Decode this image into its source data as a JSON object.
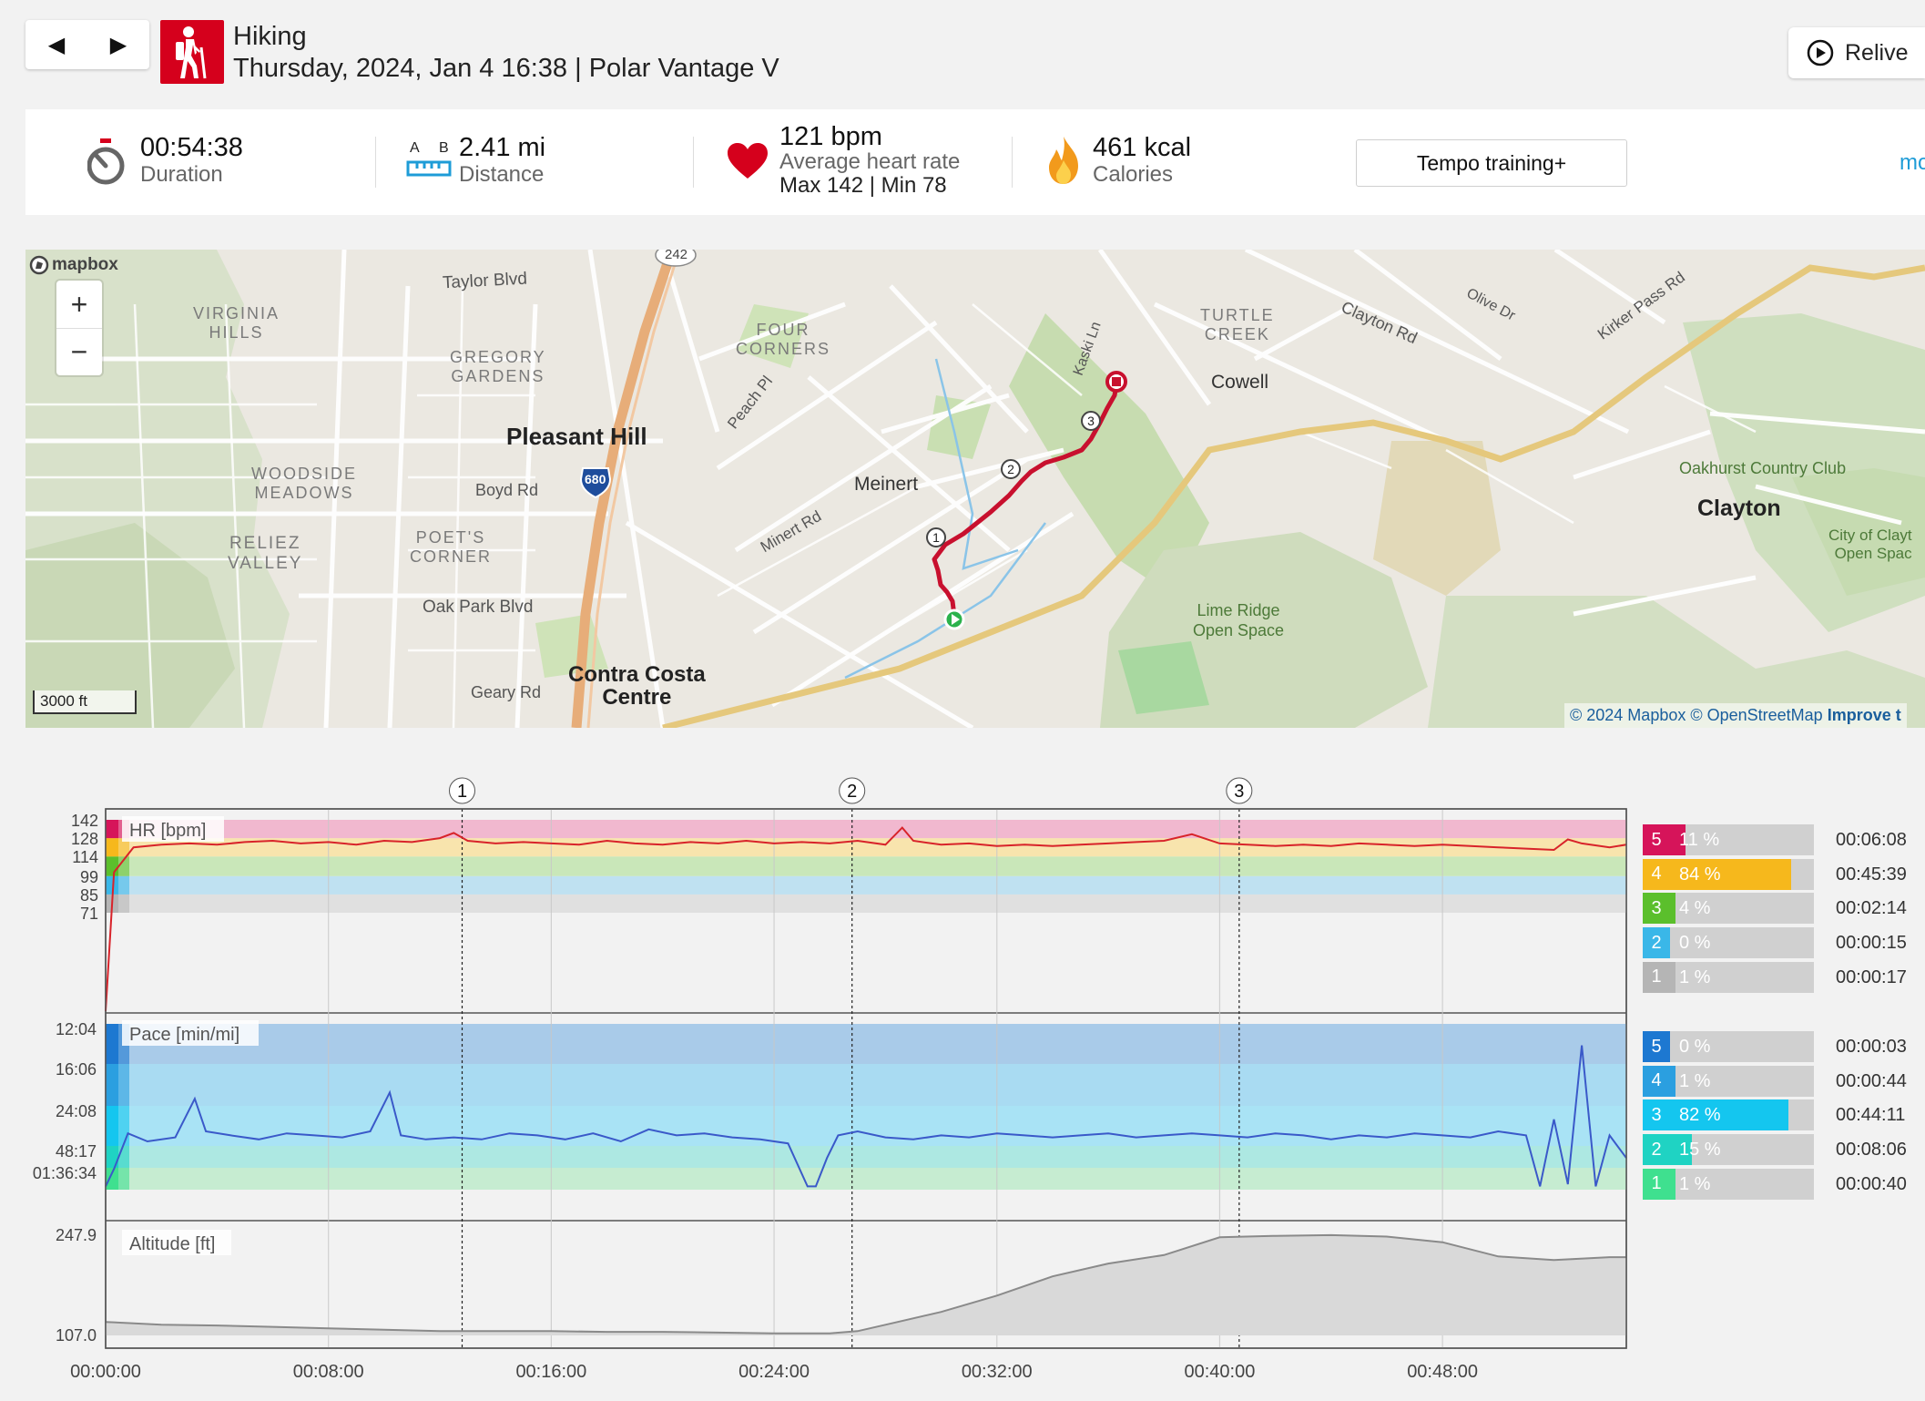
{
  "header": {
    "prev_label": "◀",
    "next_label": "▶",
    "sport": "Hiking",
    "subtitle": "Thursday, 2024, Jan 4 16:38 | Polar Vantage V",
    "relive_label": "Relive"
  },
  "summary": {
    "duration_value": "00:54:38",
    "duration_label": "Duration",
    "distance_value": "2.41 mi",
    "distance_label": "Distance",
    "distance_icon_a": "A",
    "distance_icon_b": "B",
    "hr_value": "121 bpm",
    "hr_label": "Average heart rate",
    "hr_maxmin": "Max 142  |  Min 78",
    "cal_value": "461 kcal",
    "cal_label": "Calories",
    "tempo_label": "Tempo training+",
    "more_label": "mo"
  },
  "map": {
    "labels": {
      "taylor": "Taylor Blvd",
      "virginia": "VIRGINIA\nHILLS",
      "gregory": "GREGORY\nGARDENS",
      "four": "FOUR\nCORNERS",
      "peach": "Peach Pl",
      "pleasant": "Pleasant Hill",
      "woodside": "WOODSIDE\nMEADOWS",
      "boyd": "Boyd Rd",
      "i680": "680",
      "meinert": "Meinert",
      "minert": "Minert Rd",
      "relize": "RELIEZ\nVALLEY",
      "poets": "POET'S\nCORNER",
      "oak": "Oak Park Blvd",
      "contra": "Contra Costa\nCentre",
      "geary": "Geary Rd",
      "kaski": "Kaski Ln",
      "turtle": "TURTLE\nCREEK",
      "cowell": "Cowell",
      "clayton_rd": "Clayton Rd",
      "olive": "Olive Dr",
      "kirker": "Kirker Pass Rd",
      "oakhurst": "Oakhurst Country Club",
      "clayton": "Clayton",
      "city_clayton": "City of Clayt\nOpen Spac",
      "lime": "Lime Ridge\nOpen Space",
      "hwy242": "242"
    },
    "lap_markers": [
      "1",
      "2",
      "3"
    ],
    "zoom_in": "+",
    "zoom_out": "−",
    "logo": "mapbox",
    "scale": "3000 ft",
    "attribution": "© 2024 Mapbox © OpenStreetMap",
    "improve": "Improve t"
  },
  "chart_data": {
    "type": "line",
    "x_ticks": [
      "00:00:00",
      "00:08:00",
      "00:16:00",
      "00:24:00",
      "00:32:00",
      "00:40:00",
      "00:48:00"
    ],
    "x_range_min": [
      0,
      54.6
    ],
    "laps": [
      {
        "label": "1",
        "min": 12.8
      },
      {
        "label": "2",
        "min": 26.8
      },
      {
        "label": "3",
        "min": 40.7
      }
    ],
    "hr": {
      "title": "HR [bpm]",
      "y_ticks": [
        142,
        128,
        114,
        99,
        85,
        71
      ],
      "zone_bounds": [
        71,
        85,
        99,
        114,
        128,
        142
      ],
      "minutes": [
        0,
        0.3,
        1,
        2,
        3,
        4,
        5,
        6,
        7,
        8,
        9,
        10,
        11,
        12,
        12.5,
        13,
        14,
        15,
        16,
        17,
        18,
        19,
        20,
        21,
        22,
        23,
        24,
        25,
        26,
        27,
        28,
        28.6,
        29,
        30,
        31,
        32,
        33,
        34,
        35,
        36,
        37,
        38,
        39,
        40,
        41,
        42,
        43,
        44,
        45,
        46,
        47,
        48,
        49,
        50,
        51,
        52,
        52.5,
        53,
        54,
        54.6
      ],
      "values": [
        0,
        102,
        121,
        123,
        124,
        123,
        125,
        126,
        124,
        125,
        123,
        126,
        125,
        128,
        132,
        126,
        124,
        125,
        124,
        123,
        126,
        124,
        123,
        125,
        124,
        126,
        124,
        125,
        124,
        126,
        123,
        136,
        126,
        123,
        124,
        122,
        123,
        122,
        123,
        124,
        125,
        126,
        131,
        124,
        123,
        122,
        123,
        122,
        124,
        123,
        122,
        123,
        122,
        121,
        120,
        119,
        127,
        124,
        121,
        123
      ],
      "zones": [
        {
          "zone": "5",
          "percent": "11 %",
          "fraction": 0.11,
          "time": "00:06:08",
          "color": "#d6145a"
        },
        {
          "zone": "4",
          "percent": "84 %",
          "fraction": 0.84,
          "time": "00:45:39",
          "color": "#f6b81c"
        },
        {
          "zone": "3",
          "percent": "4 %",
          "fraction": 0.04,
          "time": "00:02:14",
          "color": "#5bbf2c"
        },
        {
          "zone": "2",
          "percent": "0 %",
          "fraction": 0.0,
          "time": "00:00:15",
          "color": "#3ab7e8"
        },
        {
          "zone": "1",
          "percent": "1 %",
          "fraction": 0.01,
          "time": "00:00:17",
          "color": "#b5b5b5"
        }
      ]
    },
    "pace": {
      "title": "Pace [min/mi]",
      "y_ticks": [
        "12:04",
        "16:06",
        "24:08",
        "48:17",
        "01:36:34"
      ],
      "minutes": [
        0,
        0.3,
        0.8,
        1.5,
        2.5,
        3.2,
        3.6,
        4.5,
        5.5,
        6.5,
        7.5,
        8.5,
        9.5,
        10.2,
        10.6,
        11.5,
        12.5,
        13.5,
        14.5,
        15.5,
        16.5,
        17.5,
        18.5,
        19.5,
        20.5,
        21.5,
        22.5,
        23.5,
        24.5,
        25.2,
        25.5,
        25.9,
        26.3,
        27,
        28,
        29,
        30,
        31,
        32,
        33,
        34,
        35,
        36,
        37,
        38,
        39,
        40,
        41,
        42,
        43,
        44,
        45,
        46,
        47,
        48,
        49,
        50,
        51,
        51.5,
        52,
        52.5,
        53,
        53.5,
        54,
        54.6
      ],
      "row": [
        5.6,
        3.8,
        2.55,
        2.75,
        2.65,
        1.7,
        2.5,
        2.6,
        2.7,
        2.55,
        2.6,
        2.65,
        2.5,
        1.55,
        2.6,
        2.7,
        2.65,
        2.7,
        2.55,
        2.6,
        2.7,
        2.55,
        2.75,
        2.45,
        2.6,
        2.55,
        2.65,
        2.7,
        2.8,
        5.6,
        5.6,
        3.3,
        2.6,
        2.5,
        2.65,
        2.7,
        2.6,
        2.65,
        2.55,
        2.6,
        2.65,
        2.6,
        2.55,
        2.65,
        2.6,
        2.55,
        2.6,
        2.65,
        2.55,
        2.6,
        2.7,
        2.6,
        2.65,
        2.55,
        2.6,
        2.65,
        2.5,
        2.6,
        5.6,
        2.2,
        4.5,
        0.4,
        5.6,
        2.6,
        3.3
      ],
      "zones": [
        {
          "zone": "5",
          "percent": "0 %",
          "fraction": 0.0,
          "time": "00:00:03",
          "color": "#1d78d1"
        },
        {
          "zone": "4",
          "percent": "1 %",
          "fraction": 0.01,
          "time": "00:00:44",
          "color": "#2b9fe0"
        },
        {
          "zone": "3",
          "percent": "82 %",
          "fraction": 0.82,
          "time": "00:44:11",
          "color": "#14c6ef"
        },
        {
          "zone": "2",
          "percent": "15 %",
          "fraction": 0.15,
          "time": "00:08:06",
          "color": "#1fd3c3"
        },
        {
          "zone": "1",
          "percent": "1 %",
          "fraction": 0.01,
          "time": "00:00:40",
          "color": "#3fe08f"
        }
      ]
    },
    "altitude": {
      "title": "Altitude [ft]",
      "y_ticks": [
        "247.9",
        "107.0"
      ],
      "y_range": [
        107.0,
        247.9
      ],
      "minutes": [
        0,
        2,
        4,
        6,
        8,
        10,
        12,
        14,
        16,
        18,
        20,
        22,
        24,
        26,
        27,
        28,
        30,
        32,
        34,
        36,
        38,
        40,
        42,
        44,
        46,
        48,
        50,
        52,
        54,
        54.6
      ],
      "values": [
        126,
        122,
        121,
        119,
        117,
        115,
        113,
        113,
        113,
        112,
        112,
        111,
        110,
        110,
        113,
        122,
        140,
        163,
        190,
        208,
        220,
        245,
        247,
        248,
        246,
        238,
        218,
        213,
        217,
        217
      ]
    }
  }
}
